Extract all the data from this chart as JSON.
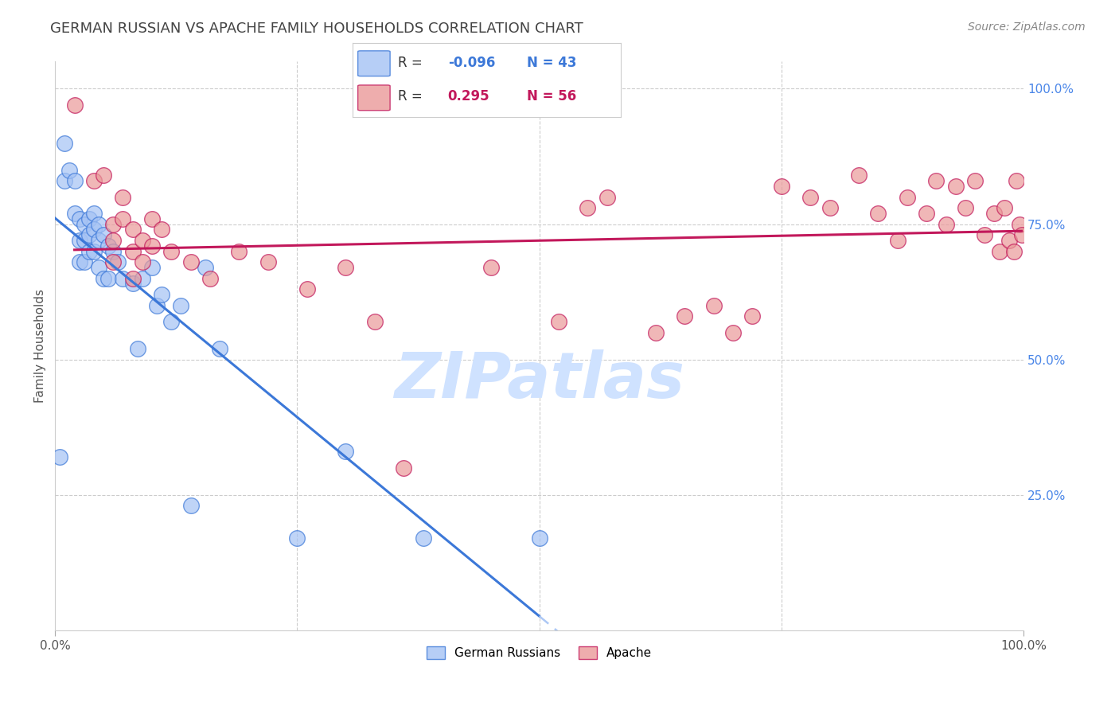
{
  "title": "GERMAN RUSSIAN VS APACHE FAMILY HOUSEHOLDS CORRELATION CHART",
  "source": "Source: ZipAtlas.com",
  "ylabel": "Family Households",
  "right_yticks": [
    "100.0%",
    "75.0%",
    "50.0%",
    "25.0%"
  ],
  "right_ytick_vals": [
    1.0,
    0.75,
    0.5,
    0.25
  ],
  "legend_label1": "German Russians",
  "legend_label2": "Apache",
  "legend_r1": "-0.096",
  "legend_n1": "43",
  "legend_r2": "0.295",
  "legend_n2": "56",
  "blue_color": "#a4c2f4",
  "pink_color": "#ea9999",
  "blue_line_color": "#3c78d8",
  "pink_line_color": "#c2185b",
  "background_color": "#ffffff",
  "grid_color": "#cccccc",
  "title_color": "#444444",
  "source_color": "#888888",
  "axis_label_color": "#555555",
  "right_tick_color": "#4a86e8",
  "bottom_tick_color": "#555555",
  "watermark_color": "#cfe2ff",
  "german_russian_x": [
    0.005,
    0.01,
    0.01,
    0.015,
    0.02,
    0.02,
    0.025,
    0.025,
    0.025,
    0.03,
    0.03,
    0.03,
    0.035,
    0.035,
    0.035,
    0.04,
    0.04,
    0.04,
    0.045,
    0.045,
    0.045,
    0.05,
    0.05,
    0.055,
    0.055,
    0.06,
    0.065,
    0.07,
    0.08,
    0.085,
    0.09,
    0.1,
    0.105,
    0.11,
    0.12,
    0.13,
    0.14,
    0.155,
    0.17,
    0.25,
    0.3,
    0.38,
    0.5
  ],
  "german_russian_y": [
    0.32,
    0.9,
    0.83,
    0.85,
    0.83,
    0.77,
    0.76,
    0.72,
    0.68,
    0.75,
    0.72,
    0.68,
    0.76,
    0.73,
    0.7,
    0.77,
    0.74,
    0.7,
    0.75,
    0.72,
    0.67,
    0.73,
    0.65,
    0.71,
    0.65,
    0.7,
    0.68,
    0.65,
    0.64,
    0.52,
    0.65,
    0.67,
    0.6,
    0.62,
    0.57,
    0.6,
    0.23,
    0.67,
    0.52,
    0.17,
    0.33,
    0.17,
    0.17
  ],
  "apache_x": [
    0.02,
    0.04,
    0.05,
    0.06,
    0.06,
    0.06,
    0.07,
    0.07,
    0.08,
    0.08,
    0.08,
    0.09,
    0.09,
    0.1,
    0.1,
    0.11,
    0.12,
    0.14,
    0.16,
    0.19,
    0.22,
    0.26,
    0.3,
    0.33,
    0.36,
    0.45,
    0.52,
    0.55,
    0.57,
    0.62,
    0.65,
    0.68,
    0.7,
    0.72,
    0.75,
    0.78,
    0.8,
    0.83,
    0.85,
    0.87,
    0.88,
    0.9,
    0.91,
    0.92,
    0.93,
    0.94,
    0.95,
    0.96,
    0.97,
    0.975,
    0.98,
    0.985,
    0.99,
    0.993,
    0.996,
    0.998
  ],
  "apache_y": [
    0.97,
    0.83,
    0.84,
    0.75,
    0.72,
    0.68,
    0.8,
    0.76,
    0.74,
    0.7,
    0.65,
    0.72,
    0.68,
    0.76,
    0.71,
    0.74,
    0.7,
    0.68,
    0.65,
    0.7,
    0.68,
    0.63,
    0.67,
    0.57,
    0.3,
    0.67,
    0.57,
    0.78,
    0.8,
    0.55,
    0.58,
    0.6,
    0.55,
    0.58,
    0.82,
    0.8,
    0.78,
    0.84,
    0.77,
    0.72,
    0.8,
    0.77,
    0.83,
    0.75,
    0.82,
    0.78,
    0.83,
    0.73,
    0.77,
    0.7,
    0.78,
    0.72,
    0.7,
    0.83,
    0.75,
    0.73
  ],
  "xlim": [
    0.0,
    1.0
  ],
  "ylim": [
    0.0,
    1.05
  ],
  "xtick_vals": [
    0.0,
    0.25,
    0.5,
    0.75,
    1.0
  ],
  "xtick_labels": [
    "0.0%",
    "",
    "",
    "",
    "100.0%"
  ]
}
